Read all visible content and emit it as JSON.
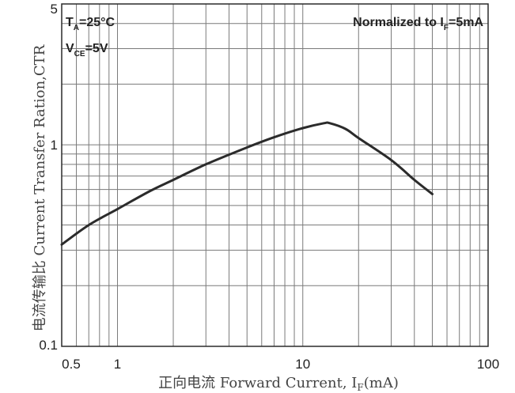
{
  "chart_data": {
    "type": "line",
    "x_scale": "log",
    "y_scale": "log",
    "xlim": [
      0.5,
      100
    ],
    "ylim": [
      0.1,
      5
    ],
    "grid": true,
    "x_ticks": [
      {
        "value": 0.5,
        "label": "0.5"
      },
      {
        "value": 1,
        "label": "1"
      },
      {
        "value": 10,
        "label": "10"
      },
      {
        "value": 100,
        "label": "100"
      }
    ],
    "y_ticks": [
      {
        "value": 0.1,
        "label": "0.1"
      },
      {
        "value": 1,
        "label": "1"
      },
      {
        "value": 5,
        "label": "5"
      }
    ],
    "xlabel": "正向电流 Forward Current, I",
    "xlabel_sub": "F",
    "xlabel_unit": "(mA)",
    "ylabel": "电流传输比 Current Transfer Ration,CTR",
    "annotation": {
      "text": "Normalized to I",
      "sub": "F",
      "tail": "=5mA"
    },
    "conditions": [
      {
        "base": "T",
        "sub": "A",
        "tail": "=25°C"
      },
      {
        "base": "V",
        "sub": "CE",
        "tail": "=5V"
      }
    ],
    "series": [
      {
        "x": [
          0.5,
          0.7,
          1,
          1.5,
          2,
          3,
          5,
          7,
          10,
          13,
          14,
          17,
          20,
          30,
          40,
          50
        ],
        "y": [
          0.32,
          0.4,
          0.48,
          0.59,
          0.67,
          0.8,
          0.97,
          1.09,
          1.21,
          1.28,
          1.28,
          1.2,
          1.08,
          0.84,
          0.67,
          0.57
        ]
      }
    ]
  }
}
